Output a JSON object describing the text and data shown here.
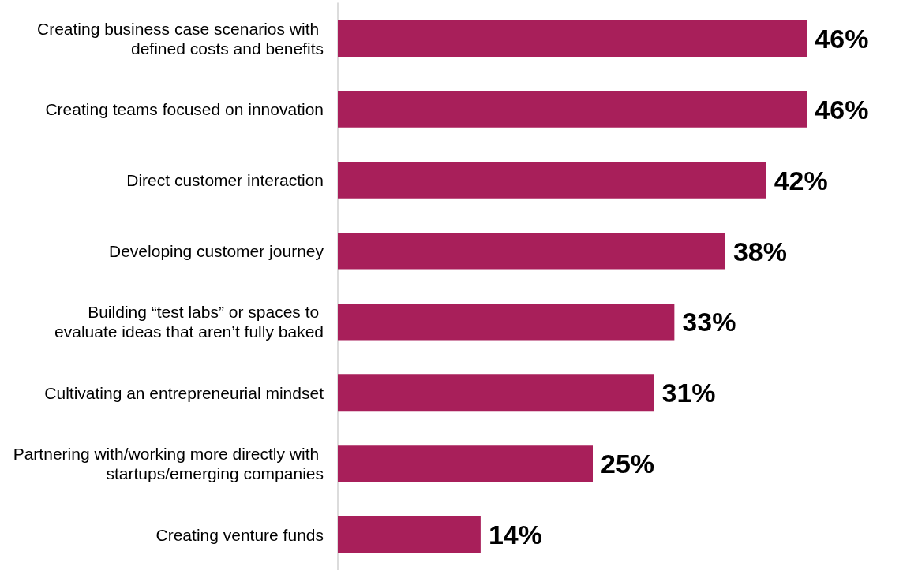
{
  "chart_data": {
    "type": "bar",
    "orientation": "horizontal",
    "categories": [
      "Creating business case scenarios with defined costs and benefits",
      "Creating teams focused on innovation",
      "Direct customer interaction",
      "Developing customer journey",
      "Building “test labs” or spaces to evaluate ideas that aren’t fully baked",
      "Cultivating an entrepreneurial mindset",
      "Partnering with/working more directly with startups/emerging companies",
      "Creating venture funds"
    ],
    "values": [
      46,
      46,
      42,
      38,
      33,
      31,
      25,
      14
    ],
    "value_labels": [
      "46%",
      "46%",
      "42%",
      "38%",
      "33%",
      "31%",
      "25%",
      "14%"
    ],
    "color": "#a81f5a"
  }
}
